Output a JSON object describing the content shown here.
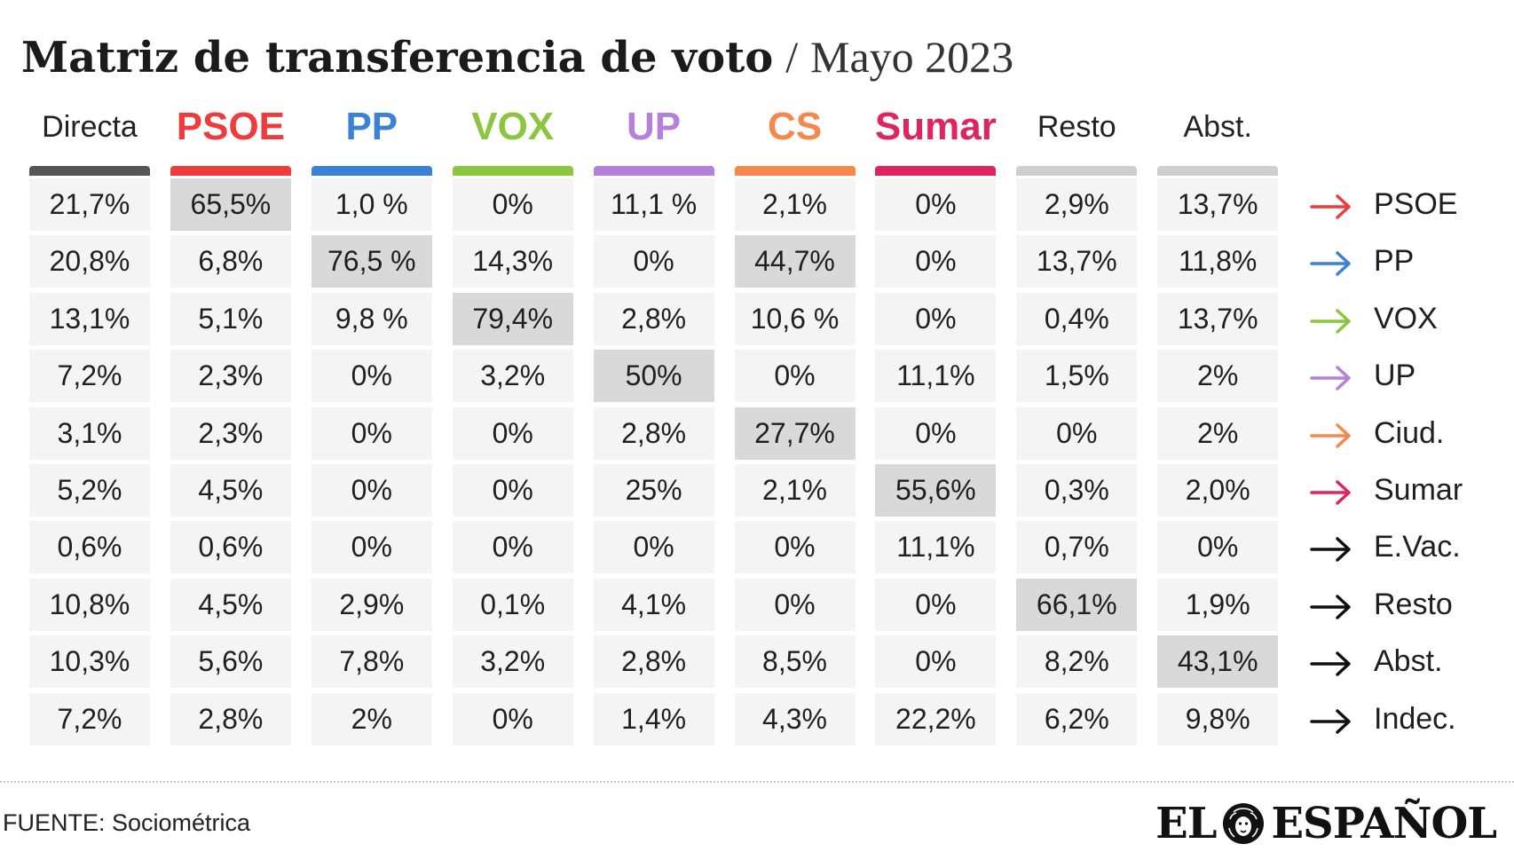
{
  "title": {
    "main": "Matriz de transferencia de voto",
    "separator": "/",
    "subtitle": "Mayo 2023"
  },
  "chart_data": {
    "type": "table",
    "columns": [
      {
        "label": "Directa",
        "color": "#555555",
        "style": "plain"
      },
      {
        "label": "PSOE",
        "color": "#ef3b3b",
        "style": "party"
      },
      {
        "label": "PP",
        "color": "#3b82d6",
        "style": "party"
      },
      {
        "label": "VOX",
        "color": "#8cc63f",
        "style": "party"
      },
      {
        "label": "UP",
        "color": "#b57fdc",
        "style": "party"
      },
      {
        "label": "CS",
        "color": "#f6884c",
        "style": "party"
      },
      {
        "label": "Sumar",
        "color": "#e0245e",
        "style": "party"
      },
      {
        "label": "Resto",
        "color": "#cfcfcf",
        "style": "plain"
      },
      {
        "label": "Abst.",
        "color": "#cfcfcf",
        "style": "plain"
      }
    ],
    "rows": [
      {
        "label": "PSOE",
        "arrow_color": "#ef3b3b",
        "values": [
          "21,7%",
          "65,5%",
          "1,0 %",
          "0%",
          "11,1 %",
          "2,1%",
          "0%",
          "2,9%",
          "13,7%"
        ],
        "highlight": 1
      },
      {
        "label": "PP",
        "arrow_color": "#3b82d6",
        "values": [
          "20,8%",
          "6,8%",
          "76,5 %",
          "14,3%",
          "0%",
          "44,7%",
          "0%",
          "13,7%",
          "11,8%"
        ],
        "highlight": [
          2,
          5
        ]
      },
      {
        "label": "VOX",
        "arrow_color": "#8cc63f",
        "values": [
          "13,1%",
          "5,1%",
          "9,8 %",
          "79,4%",
          "2,8%",
          "10,6 %",
          "0%",
          "0,4%",
          "13,7%"
        ],
        "highlight": 3
      },
      {
        "label": "UP",
        "arrow_color": "#b57fdc",
        "values": [
          "7,2%",
          "2,3%",
          "0%",
          "3,2%",
          "50%",
          "0%",
          "11,1%",
          "1,5%",
          "2%"
        ],
        "highlight": 4
      },
      {
        "label": "Ciud.",
        "arrow_color": "#f6884c",
        "values": [
          "3,1%",
          "2,3%",
          "0%",
          "0%",
          "2,8%",
          "27,7%",
          "0%",
          "0%",
          "2%"
        ],
        "highlight": 5
      },
      {
        "label": "Sumar",
        "arrow_color": "#e0245e",
        "values": [
          "5,2%",
          "4,5%",
          "0%",
          "0%",
          "25%",
          "2,1%",
          "55,6%",
          "0,3%",
          "2,0%"
        ],
        "highlight": 6
      },
      {
        "label": "E.Vac.",
        "arrow_color": "#111111",
        "values": [
          "0,6%",
          "0,6%",
          "0%",
          "0%",
          "0%",
          "0%",
          "11,1%",
          "0,7%",
          "0%"
        ],
        "highlight": null
      },
      {
        "label": "Resto",
        "arrow_color": "#111111",
        "values": [
          "10,8%",
          "4,5%",
          "2,9%",
          "0,1%",
          "4,1%",
          "0%",
          "0%",
          "66,1%",
          "1,9%"
        ],
        "highlight": 7
      },
      {
        "label": "Abst.",
        "arrow_color": "#111111",
        "values": [
          "10,3%",
          "5,6%",
          "7,8%",
          "3,2%",
          "2,8%",
          "8,5%",
          "0%",
          "8,2%",
          "43,1%"
        ],
        "highlight": 8
      },
      {
        "label": "Indec.",
        "arrow_color": "#111111",
        "values": [
          "7,2%",
          "2,8%",
          "2%",
          "0%",
          "1,4%",
          "4,3%",
          "22,2%",
          "6,2%",
          "9,8%"
        ],
        "highlight": null
      }
    ]
  },
  "footer": {
    "source": "FUENTE: Sociométrica",
    "brand_left": "EL",
    "brand_right": "ESPAÑOL",
    "brand_icon": "lion-head-icon"
  }
}
